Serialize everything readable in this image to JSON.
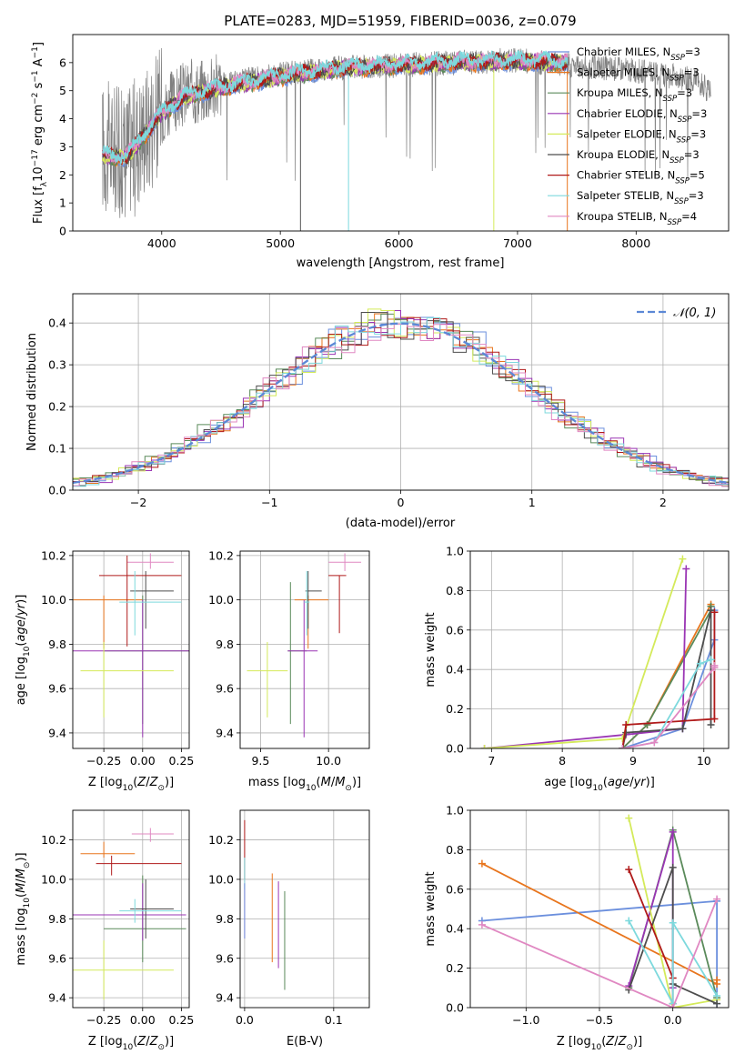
{
  "title": "PLATE=0283, MJD=51959, FIBERID=0036, z=0.079",
  "colors": [
    "#6b8fdd",
    "#e8751d",
    "#5a8a5a",
    "#9a35b4",
    "#d4ea5a",
    "#4d4d4d",
    "#b01a1a",
    "#7dd9dd",
    "#e088c2"
  ],
  "legend_spectrum": [
    {
      "pre": "Chabrier MILES, N",
      "sub": "SSP",
      "post": "=3"
    },
    {
      "pre": "Salpeter MILES, N",
      "sub": "SSP",
      "post": "=3"
    },
    {
      "pre": "Kroupa MILES, N",
      "sub": "SSP",
      "post": "=3"
    },
    {
      "pre": "Chabrier ELODIE, N",
      "sub": "SSP",
      "post": "=3"
    },
    {
      "pre": "Salpeter ELODIE, N",
      "sub": "SSP",
      "post": "=3"
    },
    {
      "pre": "Kroupa ELODIE, N",
      "sub": "SSP",
      "post": "=3"
    },
    {
      "pre": "Chabrier STELIB, N",
      "sub": "SSP",
      "post": "=5"
    },
    {
      "pre": "Salpeter STELIB, N",
      "sub": "SSP",
      "post": "=3"
    },
    {
      "pre": "Kroupa STELIB, N",
      "sub": "SSP",
      "post": "=4"
    }
  ],
  "legend_hist": "𝒩(0, 1)",
  "chart_data": [
    {
      "id": "spectrum",
      "type": "line",
      "xlabel": "wavelength [Angstrom, rest frame]",
      "ylabel": "Flux [f_λ 10^-17 erg cm^-2 s^-1 A^-1]",
      "xlim": [
        3250,
        8780
      ],
      "ylim": [
        0,
        7
      ],
      "xticks": [
        4000,
        5000,
        6000,
        7000,
        8000
      ],
      "yticks": [
        0,
        1,
        2,
        3,
        4,
        5,
        6
      ],
      "data_series": {
        "name": "data",
        "x_range": [
          3500,
          8630
        ],
        "continuum": [
          [
            3500,
            3.0
          ],
          [
            3700,
            2.8
          ],
          [
            3850,
            3.6
          ],
          [
            4000,
            4.3
          ],
          [
            4200,
            4.9
          ],
          [
            4500,
            5.2
          ],
          [
            5000,
            5.6
          ],
          [
            5500,
            5.8
          ],
          [
            6000,
            5.9
          ],
          [
            6500,
            6.0
          ],
          [
            7000,
            6.1
          ],
          [
            7200,
            6.0
          ],
          [
            7500,
            5.9
          ],
          [
            8000,
            5.7
          ],
          [
            8500,
            5.4
          ],
          [
            8630,
            4.9
          ]
        ]
      },
      "model_x_range": [
        3500,
        7420
      ],
      "model_continuum": [
        [
          3500,
          2.7
        ],
        [
          3700,
          2.6
        ],
        [
          3850,
          3.4
        ],
        [
          4000,
          4.2
        ],
        [
          4200,
          4.8
        ],
        [
          4500,
          5.1
        ],
        [
          5000,
          5.5
        ],
        [
          5500,
          5.8
        ],
        [
          6000,
          5.9
        ],
        [
          6500,
          6.0
        ],
        [
          7000,
          6.05
        ],
        [
          7420,
          6.0
        ]
      ]
    },
    {
      "id": "residuals",
      "type": "line",
      "xlabel": "(data-model)/error",
      "ylabel": "Normed distribution",
      "xlim": [
        -2.5,
        2.5
      ],
      "ylim": [
        0,
        0.47
      ],
      "xticks": [
        -2,
        -1,
        0,
        1,
        2
      ],
      "yticks": [
        0.0,
        0.1,
        0.2,
        0.3,
        0.4
      ],
      "bin_width": 0.1,
      "gaussian": {
        "mean": 0,
        "sigma": 1
      }
    },
    {
      "id": "age_vs_Z",
      "type": "scatter",
      "xlabel": "Z [log10(Z/Z⊙)]",
      "ylabel": "age  [log10(age/yr)]",
      "xlim": [
        -0.45,
        0.3
      ],
      "ylim": [
        9.33,
        10.22
      ],
      "xticks": [
        -0.25,
        0.0,
        0.25
      ],
      "yticks": [
        9.4,
        9.6,
        9.8,
        10.0,
        10.2
      ],
      "points": [
        {
          "x": 0.05,
          "xerr": [
            0.15,
            0.15
          ],
          "y": 10.17,
          "yerr": [
            0.03,
            0.04
          ]
        },
        {
          "x": -0.25,
          "xerr": [
            0.2,
            0.25
          ],
          "y": 10.0,
          "yerr": [
            0.22,
            0.02
          ]
        },
        {
          "x": 0.0,
          "xerr": [
            0.25,
            0.3
          ],
          "y": 9.77,
          "yerr": [
            0.33,
            0.25
          ]
        },
        {
          "x": 0.0,
          "xerr": [
            0.45,
            0.3
          ],
          "y": 9.77,
          "yerr": [
            0.39,
            0.23
          ]
        },
        {
          "x": -0.25,
          "xerr": [
            0.15,
            0.45
          ],
          "y": 9.68,
          "yerr": [
            0.21,
            0.13
          ]
        },
        {
          "x": 0.02,
          "xerr": [
            0.1,
            0.18
          ],
          "y": 10.04,
          "yerr": [
            0.17,
            0.09
          ]
        },
        {
          "x": -0.1,
          "xerr": [
            0.18,
            0.35
          ],
          "y": 10.11,
          "yerr": [
            0.32,
            0.09
          ]
        },
        {
          "x": -0.05,
          "xerr": [
            0.1,
            0.3
          ],
          "y": 9.99,
          "yerr": [
            0.15,
            0.14
          ]
        }
      ]
    },
    {
      "id": "age_vs_mass",
      "type": "scatter",
      "xlabel": "mass [log10(M/M⊙)]",
      "ylabel": "",
      "xlim": [
        9.35,
        10.3
      ],
      "ylim": [
        9.33,
        10.22
      ],
      "xticks": [
        9.5,
        10.0
      ],
      "yticks": [
        9.4,
        9.6,
        9.8,
        10.0,
        10.2
      ],
      "points": [
        {
          "x": 10.12,
          "xerr": [
            0.12,
            0.12
          ],
          "y": 10.17,
          "yerr": [
            0.04,
            0.04
          ]
        },
        {
          "x": 9.85,
          "xerr": [
            0.1,
            0.15
          ],
          "y": 10.0,
          "yerr": [
            0.22,
            0.02
          ]
        },
        {
          "x": 9.72,
          "xerr": [
            0.02,
            0.12
          ],
          "y": 9.77,
          "yerr": [
            0.33,
            0.31
          ]
        },
        {
          "x": 9.82,
          "xerr": [
            0.12,
            0.1
          ],
          "y": 9.77,
          "yerr": [
            0.39,
            0.23
          ]
        },
        {
          "x": 9.55,
          "xerr": [
            0.15,
            0.15
          ],
          "y": 9.68,
          "yerr": [
            0.21,
            0.13
          ]
        },
        {
          "x": 9.85,
          "xerr": [
            0.02,
            0.1
          ],
          "y": 10.04,
          "yerr": [
            0.17,
            0.09
          ]
        },
        {
          "x": 10.08,
          "xerr": [
            0.08,
            0.05
          ],
          "y": 10.11,
          "yerr": [
            0.26,
            0.0
          ]
        },
        {
          "x": 9.84,
          "xerr": [
            0.02,
            0.02
          ],
          "y": 9.99,
          "yerr": [
            0.15,
            0.14
          ]
        }
      ]
    },
    {
      "id": "cumulative_age",
      "type": "line",
      "xlabel": "age  [log10(age/yr)]",
      "ylabel": "mass weight",
      "xlim": [
        6.7,
        10.35
      ],
      "ylim": [
        0,
        1
      ],
      "xticks": [
        7,
        8,
        9,
        10
      ],
      "yticks": [
        0.0,
        0.2,
        0.4,
        0.6,
        0.8,
        1.0
      ],
      "series": [
        {
          "x": [
            8.85,
            9.7,
            10.15,
            10.15
          ],
          "y": [
            0.0,
            0.1,
            0.55,
            0.7
          ]
        },
        {
          "x": [
            8.85,
            9.2,
            10.1,
            10.1
          ],
          "y": [
            0.0,
            0.12,
            0.73,
            0.72
          ]
        },
        {
          "x": [
            8.85,
            9.2,
            10.1,
            10.1
          ],
          "y": [
            0.0,
            0.12,
            0.7,
            0.72
          ]
        },
        {
          "x": [
            6.9,
            8.9,
            9.7,
            9.75
          ],
          "y": [
            0.0,
            0.07,
            0.1,
            0.91
          ]
        },
        {
          "x": [
            6.9,
            8.85,
            9.7
          ],
          "y": [
            0.0,
            0.05,
            0.96
          ]
        },
        {
          "x": [
            8.85,
            8.9,
            9.7,
            10.1,
            10.1
          ],
          "y": [
            0.0,
            0.08,
            0.1,
            0.7,
            0.12
          ]
        },
        {
          "x": [
            8.85,
            8.9,
            10.15,
            10.15
          ],
          "y": [
            0.0,
            0.12,
            0.15,
            0.69
          ]
        },
        {
          "x": [
            8.85,
            9.3,
            9.95,
            10.1
          ],
          "y": [
            0.0,
            0.03,
            0.43,
            0.45
          ]
        },
        {
          "x": [
            8.85,
            9.3,
            10.15,
            10.15
          ],
          "y": [
            0.0,
            0.03,
            0.41,
            0.42
          ]
        }
      ]
    },
    {
      "id": "mass_vs_Z",
      "type": "scatter",
      "xlabel": "Z [log10(Z/Z⊙)]",
      "ylabel": "mass [log10(M/M⊙)]",
      "xlim": [
        -0.45,
        0.3
      ],
      "ylim": [
        9.35,
        10.35
      ],
      "xticks": [
        -0.25,
        0.0,
        0.25
      ],
      "yticks": [
        9.4,
        9.6,
        9.8,
        10.0,
        10.2
      ],
      "points": [
        {
          "x": 0.05,
          "xerr": [
            0.12,
            0.15
          ],
          "y": 10.23,
          "yerr": [
            0.04,
            0.03
          ]
        },
        {
          "x": -0.25,
          "xerr": [
            0.15,
            0.2
          ],
          "y": 10.13,
          "yerr": [
            0.02,
            0.06
          ]
        },
        {
          "x": 0.0,
          "xerr": [
            0.25,
            0.28
          ],
          "y": 9.75,
          "yerr": [
            0.17,
            0.27
          ]
        },
        {
          "x": 0.0,
          "xerr": [
            0.45,
            0.28
          ],
          "y": 9.82,
          "yerr": [
            0.13,
            0.16
          ]
        },
        {
          "x": -0.25,
          "xerr": [
            0.2,
            0.45
          ],
          "y": 9.54,
          "yerr": [
            0.15,
            0.15
          ]
        },
        {
          "x": 0.02,
          "xerr": [
            0.1,
            0.18
          ],
          "y": 9.85,
          "yerr": [
            0.15,
            0.15
          ]
        },
        {
          "x": -0.2,
          "xerr": [
            0.1,
            0.45
          ],
          "y": 10.08,
          "yerr": [
            0.06,
            0.04
          ]
        },
        {
          "x": -0.05,
          "xerr": [
            0.1,
            0.3
          ],
          "y": 9.84,
          "yerr": [
            0.06,
            0.06
          ]
        }
      ]
    },
    {
      "id": "mass_vs_EBV",
      "type": "scatter",
      "xlabel": "E(B-V)",
      "ylabel": "",
      "xlim": [
        -0.005,
        0.14
      ],
      "ylim": [
        9.35,
        10.35
      ],
      "xticks": [
        0.0,
        0.1
      ],
      "yticks": [
        9.4,
        9.6,
        9.8,
        10.0,
        10.2
      ],
      "points": [
        {
          "x": 0.0,
          "y": 10.15,
          "yerr": [
            0.15,
            0.15
          ]
        },
        {
          "x": 0.031,
          "y": 9.75,
          "yerr": [
            0.17,
            0.28
          ]
        },
        {
          "x": 0.045,
          "y": 9.69,
          "yerr": [
            0.25,
            0.25
          ]
        },
        {
          "x": 0.038,
          "y": 9.75,
          "yerr": [
            0.2,
            0.24
          ]
        },
        {
          "x": 0.14,
          "y": 9.54,
          "yerr": [
            0.15,
            0.15
          ]
        },
        {
          "x": 0.0,
          "y": 9.85,
          "yerr": [
            0.15,
            0.15
          ]
        },
        {
          "x": 0.0,
          "y": 10.03,
          "yerr": [
            0.08,
            0.08
          ]
        },
        {
          "x": 0.0,
          "y": 9.84,
          "yerr": [
            0.14,
            0.14
          ]
        }
      ]
    },
    {
      "id": "cumulative_Z",
      "type": "line",
      "xlabel": "Z [log10(Z/Z⊙)]",
      "ylabel": "mass weight",
      "xlim": [
        -1.38,
        0.38
      ],
      "ylim": [
        0,
        1
      ],
      "xticks": [
        -1.0,
        -0.5,
        0.0
      ],
      "yticks": [
        0.0,
        0.2,
        0.4,
        0.6,
        0.8,
        1.0
      ],
      "series": [
        {
          "x": [
            -1.3,
            0.3,
            0.3
          ],
          "y": [
            0.44,
            0.54,
            0.02
          ]
        },
        {
          "x": [
            -1.3,
            0.3,
            0.3
          ],
          "y": [
            0.73,
            0.12,
            0.14
          ]
        },
        {
          "x": [
            -0.3,
            0.0,
            0.3
          ],
          "y": [
            0.1,
            0.9,
            0.05
          ]
        },
        {
          "x": [
            -0.3,
            0.0,
            0.0
          ],
          "y": [
            0.11,
            0.89,
            0.1
          ]
        },
        {
          "x": [
            -0.3,
            0.0,
            0.3
          ],
          "y": [
            0.96,
            0.0,
            0.04
          ]
        },
        {
          "x": [
            -0.3,
            0.0,
            0.0,
            0.3
          ],
          "y": [
            0.09,
            0.71,
            0.12,
            0.02
          ]
        },
        {
          "x": [
            -0.3,
            0.0,
            0.0
          ],
          "y": [
            0.7,
            0.15,
            0.02
          ]
        },
        {
          "x": [
            -0.3,
            0.0,
            0.0,
            0.3
          ],
          "y": [
            0.44,
            0.02,
            0.43,
            0.06
          ]
        },
        {
          "x": [
            -1.3,
            0.0,
            0.3
          ],
          "y": [
            0.42,
            0.0,
            0.55
          ]
        }
      ]
    }
  ]
}
